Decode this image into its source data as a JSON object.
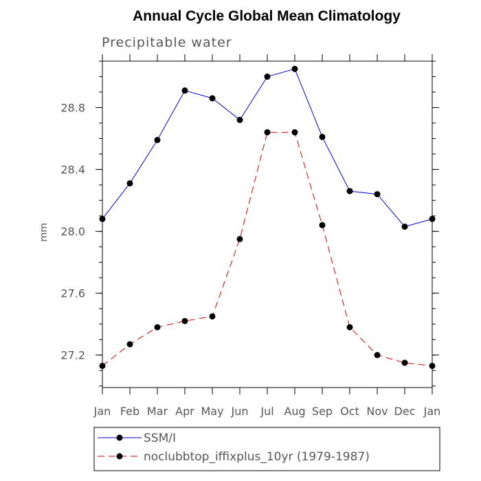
{
  "chart_data": {
    "type": "line",
    "title": "Annual Cycle Global Mean Climatology",
    "subtitle": "Precipitable water",
    "xlabel": "",
    "ylabel": "mm",
    "categories": [
      "Jan",
      "Feb",
      "Mar",
      "Apr",
      "May",
      "Jun",
      "Jul",
      "Aug",
      "Sep",
      "Oct",
      "Nov",
      "Dec",
      "Jan"
    ],
    "ylim": [
      26.99,
      29.1
    ],
    "yticks": [
      27.2,
      27.6,
      28.0,
      28.4,
      28.8
    ],
    "ytick_labels": [
      "27.2",
      "27.6",
      "28.0",
      "28.4",
      "28.8"
    ],
    "minor_tick_step": 0.1,
    "grid": false,
    "legend_position": "bottom",
    "series": [
      {
        "name": "SSM/I",
        "color": "#0000cc",
        "dash": "solid",
        "values": [
          28.08,
          28.31,
          28.59,
          28.91,
          28.86,
          28.72,
          29.0,
          29.05,
          28.61,
          28.26,
          28.24,
          28.03,
          28.08
        ]
      },
      {
        "name": "noclubbtop_iffixplus_10yr (1979-1987)",
        "color": "#cc0000",
        "dash": "dashed",
        "values": [
          27.13,
          27.27,
          27.38,
          27.42,
          27.45,
          27.95,
          28.64,
          28.64,
          28.04,
          27.38,
          27.2,
          27.15,
          27.13
        ]
      }
    ]
  }
}
